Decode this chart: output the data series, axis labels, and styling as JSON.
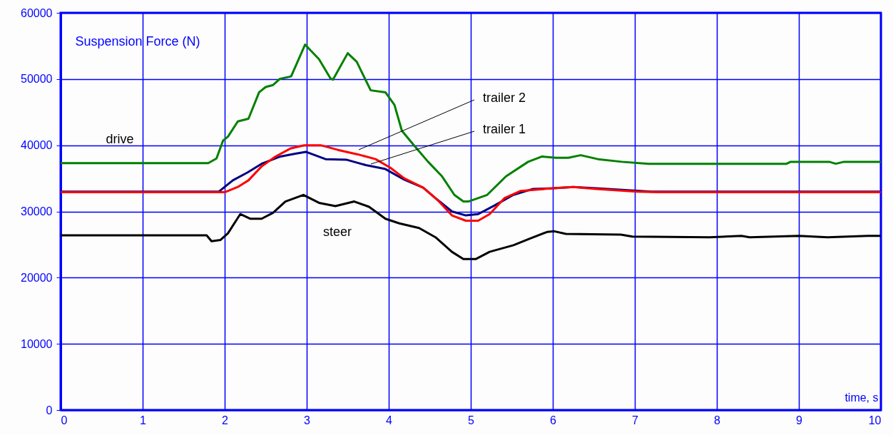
{
  "chart_data": {
    "type": "line",
    "xlabel": "time, s",
    "ylabel": "Suspension Force (N)",
    "xlim": [
      0,
      10
    ],
    "xticks": [
      0,
      1,
      2,
      3,
      4,
      5,
      6,
      7,
      8,
      9,
      10
    ],
    "ylim": [
      0,
      60000
    ],
    "yticks": [
      0,
      10000,
      20000,
      30000,
      40000,
      50000,
      60000
    ],
    "grid": true,
    "series": [
      {
        "name": "drive",
        "color": "#008000",
        "x": [
          0,
          1.8,
          1.9,
          1.98,
          2.04,
          2.16,
          2.29,
          2.42,
          2.5,
          2.59,
          2.67,
          2.81,
          2.98,
          3.15,
          3.29,
          3.32,
          3.5,
          3.61,
          3.78,
          3.96,
          4.07,
          4.16,
          4.3,
          4.48,
          4.65,
          4.8,
          4.91,
          4.97,
          5.2,
          5.43,
          5.7,
          5.87,
          6.04,
          6.19,
          6.34,
          6.55,
          6.84,
          7.17,
          8.85,
          8.9,
          9.37,
          9.45,
          9.55,
          10
        ],
        "values": [
          37300,
          37300,
          38000,
          40700,
          41300,
          43600,
          44000,
          48000,
          48800,
          49100,
          50000,
          50400,
          55200,
          53000,
          50100,
          49900,
          53900,
          52600,
          48300,
          48000,
          46100,
          42200,
          40100,
          37500,
          35300,
          32500,
          31500,
          31500,
          32500,
          35300,
          37500,
          38300,
          38100,
          38100,
          38500,
          37900,
          37500,
          37200,
          37200,
          37500,
          37500,
          37200,
          37500,
          37500
        ]
      },
      {
        "name": "trailer 1",
        "color": "#000080",
        "x": [
          0,
          1.93,
          2.1,
          2.28,
          2.45,
          2.68,
          2.85,
          2.99,
          3.23,
          3.49,
          3.72,
          3.96,
          4.19,
          4.42,
          4.59,
          4.77,
          4.94,
          5.09,
          5.29,
          5.52,
          5.76,
          6.0,
          6.25,
          6.53,
          7.2,
          10
        ],
        "values": [
          33000,
          33000,
          34700,
          35900,
          37200,
          38300,
          38700,
          39000,
          37900,
          37800,
          37000,
          36400,
          34800,
          33600,
          31800,
          30000,
          29400,
          29600,
          30900,
          32500,
          33400,
          33500,
          33700,
          33500,
          33000,
          33000
        ]
      },
      {
        "name": "trailer 2",
        "color": "#ff0000",
        "x": [
          0,
          2.0,
          2.16,
          2.29,
          2.45,
          2.62,
          2.8,
          2.97,
          3.17,
          3.38,
          3.63,
          3.84,
          4.02,
          4.19,
          4.42,
          4.59,
          4.77,
          4.94,
          5.09,
          5.23,
          5.41,
          5.61,
          6.0,
          6.25,
          6.53,
          7.03,
          7.3,
          10
        ],
        "values": [
          32900,
          32900,
          33700,
          34700,
          36800,
          38300,
          39500,
          40000,
          40000,
          39300,
          38600,
          37900,
          36600,
          35000,
          33600,
          31800,
          29400,
          28600,
          28600,
          29600,
          32000,
          33100,
          33500,
          33700,
          33400,
          33000,
          32900,
          32900
        ]
      },
      {
        "name": "steer",
        "color": "#000000",
        "x": [
          0,
          1.78,
          1.84,
          1.95,
          2.04,
          2.19,
          2.31,
          2.45,
          2.59,
          2.74,
          2.96,
          3.15,
          3.35,
          3.58,
          3.76,
          3.96,
          4.13,
          4.37,
          4.57,
          4.77,
          4.91,
          5.06,
          5.23,
          5.52,
          5.72,
          5.93,
          6.02,
          6.16,
          6.83,
          6.97,
          7.91,
          8.3,
          8.4,
          9.0,
          9.35,
          9.84,
          10
        ],
        "values": [
          26400,
          26400,
          25500,
          25700,
          26700,
          29600,
          28900,
          28900,
          29800,
          31500,
          32500,
          31300,
          30800,
          31500,
          30700,
          28900,
          28200,
          27500,
          26100,
          23900,
          22800,
          22800,
          23900,
          24900,
          25900,
          26900,
          27000,
          26600,
          26500,
          26200,
          26100,
          26300,
          26100,
          26300,
          26100,
          26300,
          26300
        ]
      }
    ]
  }
}
